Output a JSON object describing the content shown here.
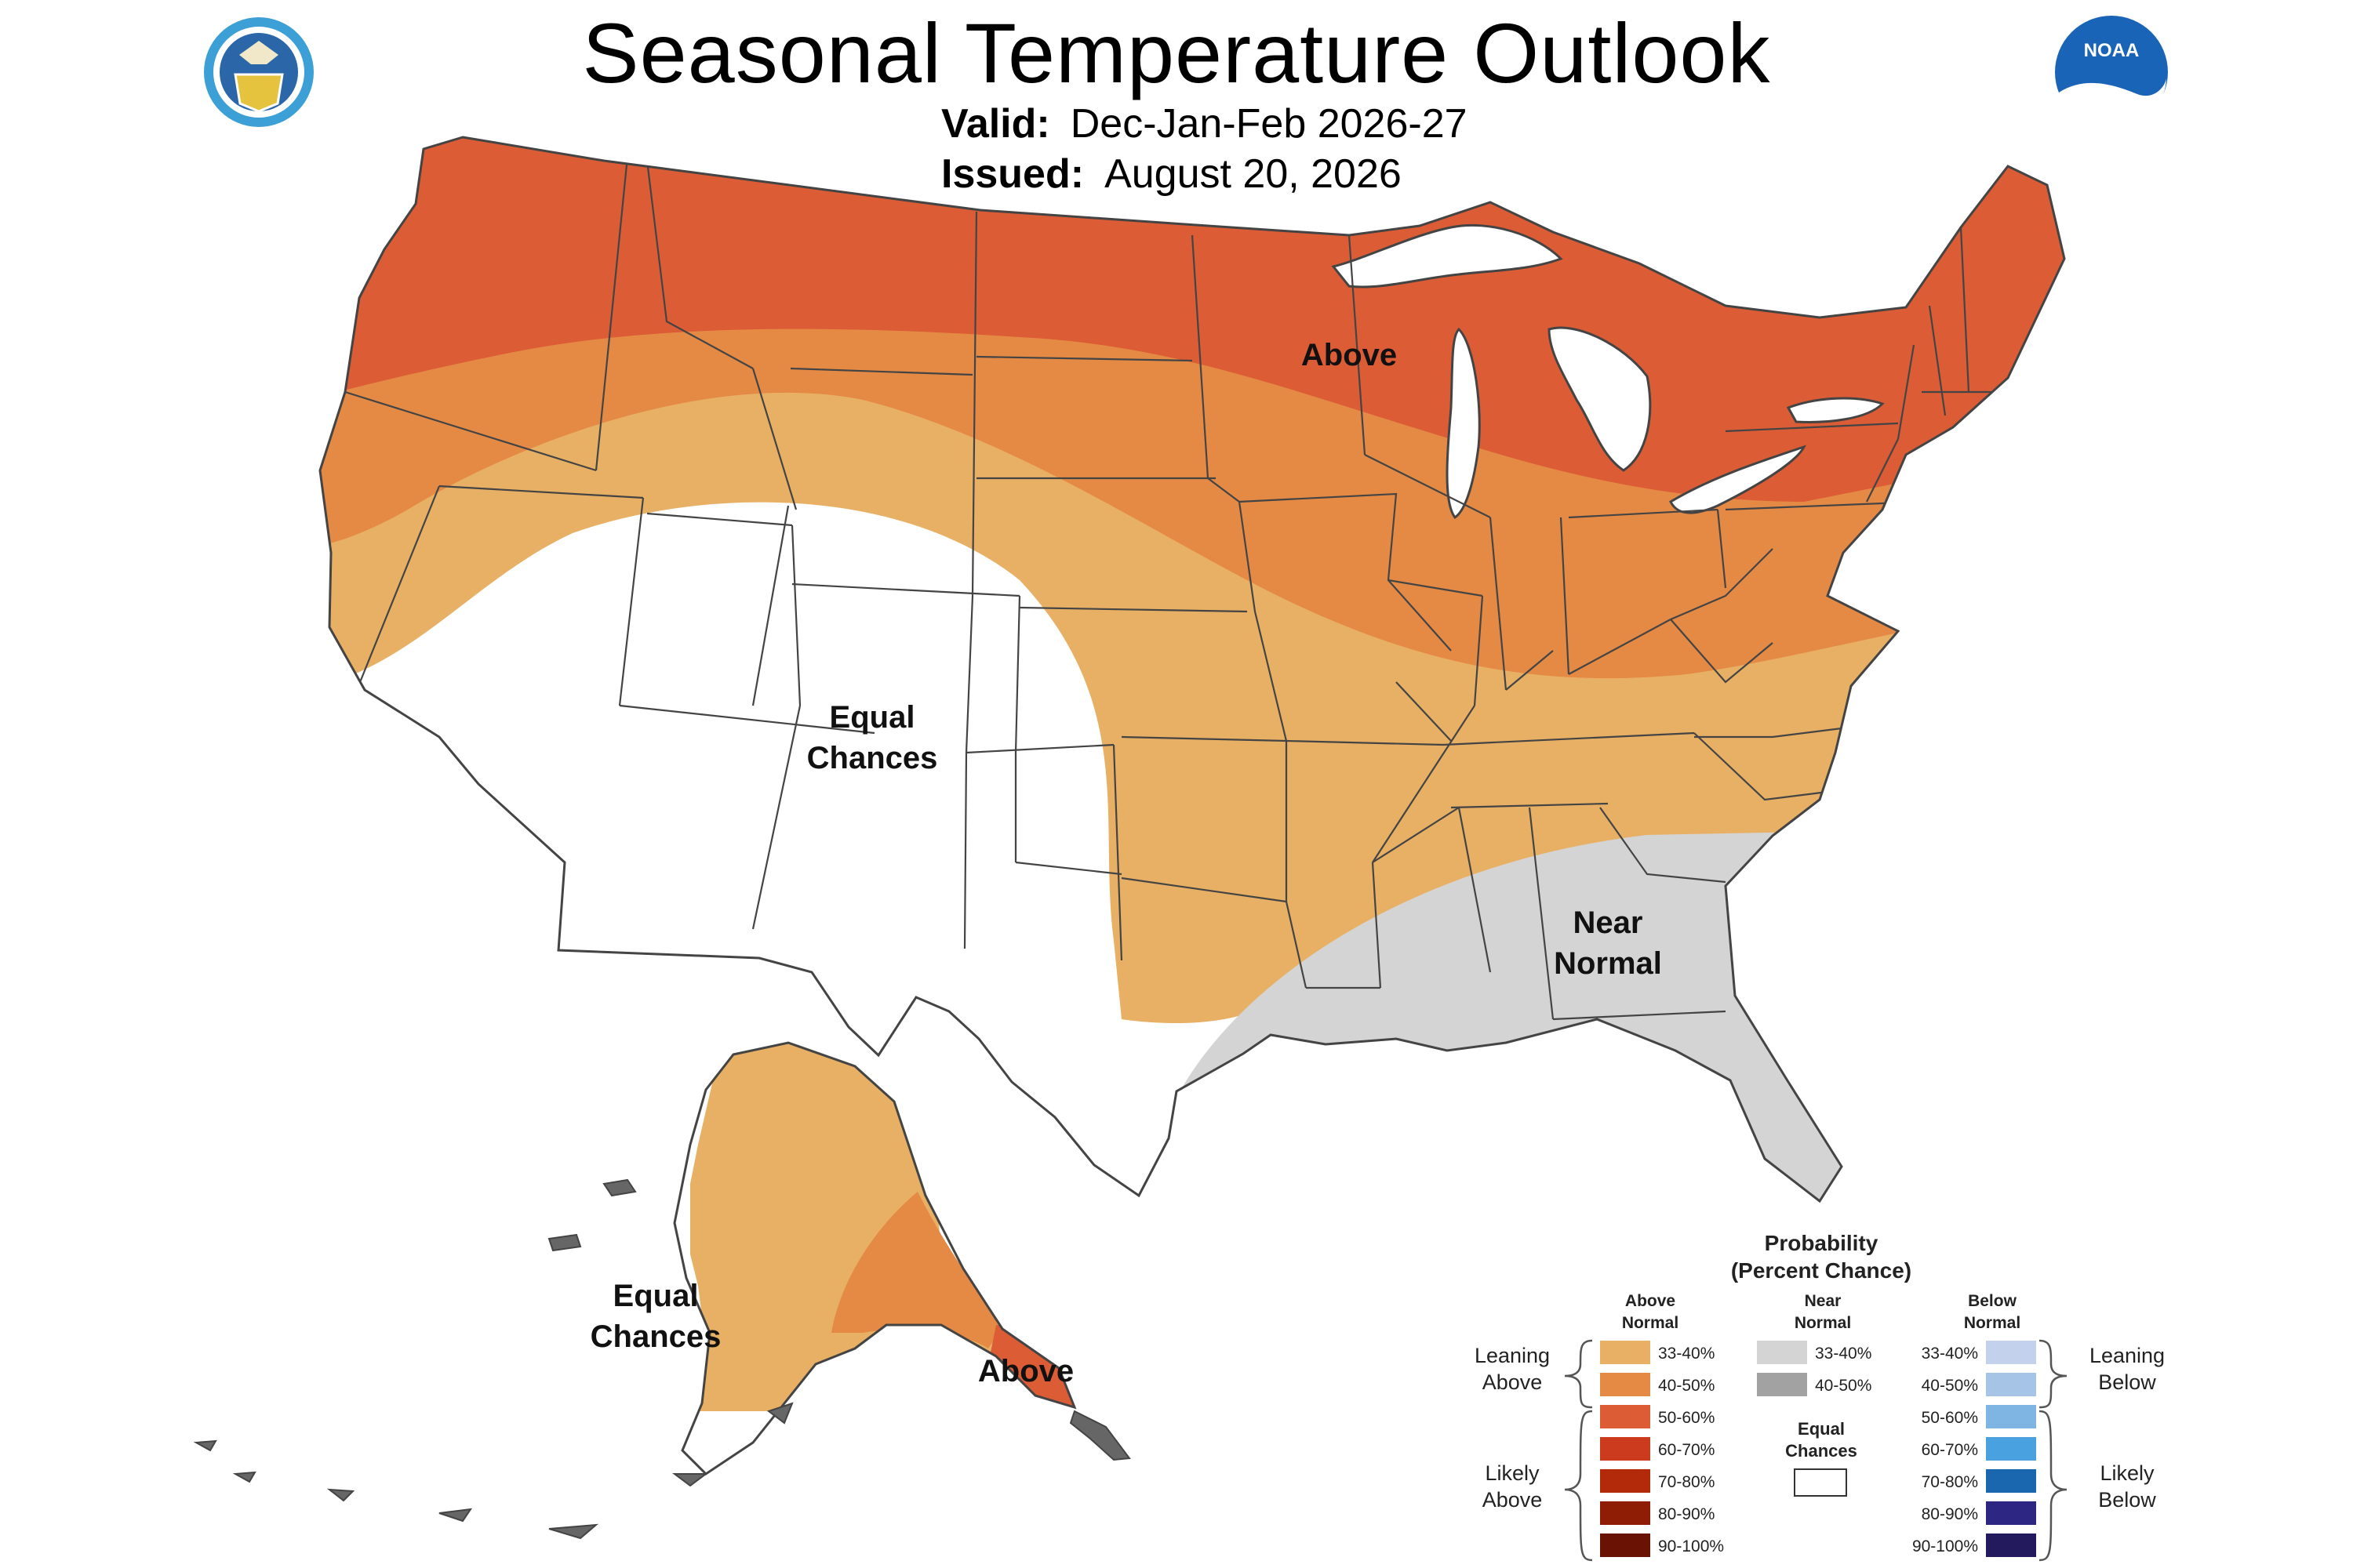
{
  "header": {
    "title": "Seasonal Temperature Outlook",
    "valid_label": "Valid:",
    "valid_value": "Dec-Jan-Feb 2026-27",
    "issued_label": "Issued:",
    "issued_value": "August 20, 2026"
  },
  "logos": {
    "left": "commerce-seal-icon",
    "right": "noaa-logo-icon",
    "right_text": "NOAA"
  },
  "regions": {
    "above_north": "Above",
    "equal_west_1": "Equal",
    "equal_west_2": "Chances",
    "near_normal_1": "Near",
    "near_normal_2": "Normal",
    "equal_alaska_1": "Equal",
    "equal_alaska_2": "Chances",
    "above_alaska": "Above"
  },
  "legend": {
    "title_1": "Probability",
    "title_2": "(Percent Chance)",
    "above_header_1": "Above",
    "above_header_2": "Normal",
    "near_header_1": "Near",
    "near_header_2": "Normal",
    "below_header_1": "Below",
    "below_header_2": "Normal",
    "leaning_above_1": "Leaning",
    "leaning_above_2": "Above",
    "likely_above_1": "Likely",
    "likely_above_2": "Above",
    "leaning_below_1": "Leaning",
    "leaning_below_2": "Below",
    "likely_below_1": "Likely",
    "likely_below_2": "Below",
    "equal_chances_1": "Equal",
    "equal_chances_2": "Chances",
    "above": [
      {
        "label": "33-40%",
        "color": "#e8b064"
      },
      {
        "label": "40-50%",
        "color": "#e58a45"
      },
      {
        "label": "50-60%",
        "color": "#dc5c35"
      },
      {
        "label": "60-70%",
        "color": "#cd3b1e"
      },
      {
        "label": "70-80%",
        "color": "#b22a0a"
      },
      {
        "label": "80-90%",
        "color": "#8f1c05"
      },
      {
        "label": "90-100%",
        "color": "#6a1304"
      }
    ],
    "near": [
      {
        "label": "33-40%",
        "color": "#d4d4d4"
      },
      {
        "label": "40-50%",
        "color": "#a2a2a2"
      }
    ],
    "below": [
      {
        "label": "33-40%",
        "color": "#c3d1ec"
      },
      {
        "label": "40-50%",
        "color": "#a6c5e6"
      },
      {
        "label": "50-60%",
        "color": "#7fb5e2"
      },
      {
        "label": "60-70%",
        "color": "#4aa1df"
      },
      {
        "label": "70-80%",
        "color": "#1a67b0"
      },
      {
        "label": "80-90%",
        "color": "#2d2682"
      },
      {
        "label": "90-100%",
        "color": "#221a5d"
      }
    ],
    "equal_color": "#ffffff"
  }
}
